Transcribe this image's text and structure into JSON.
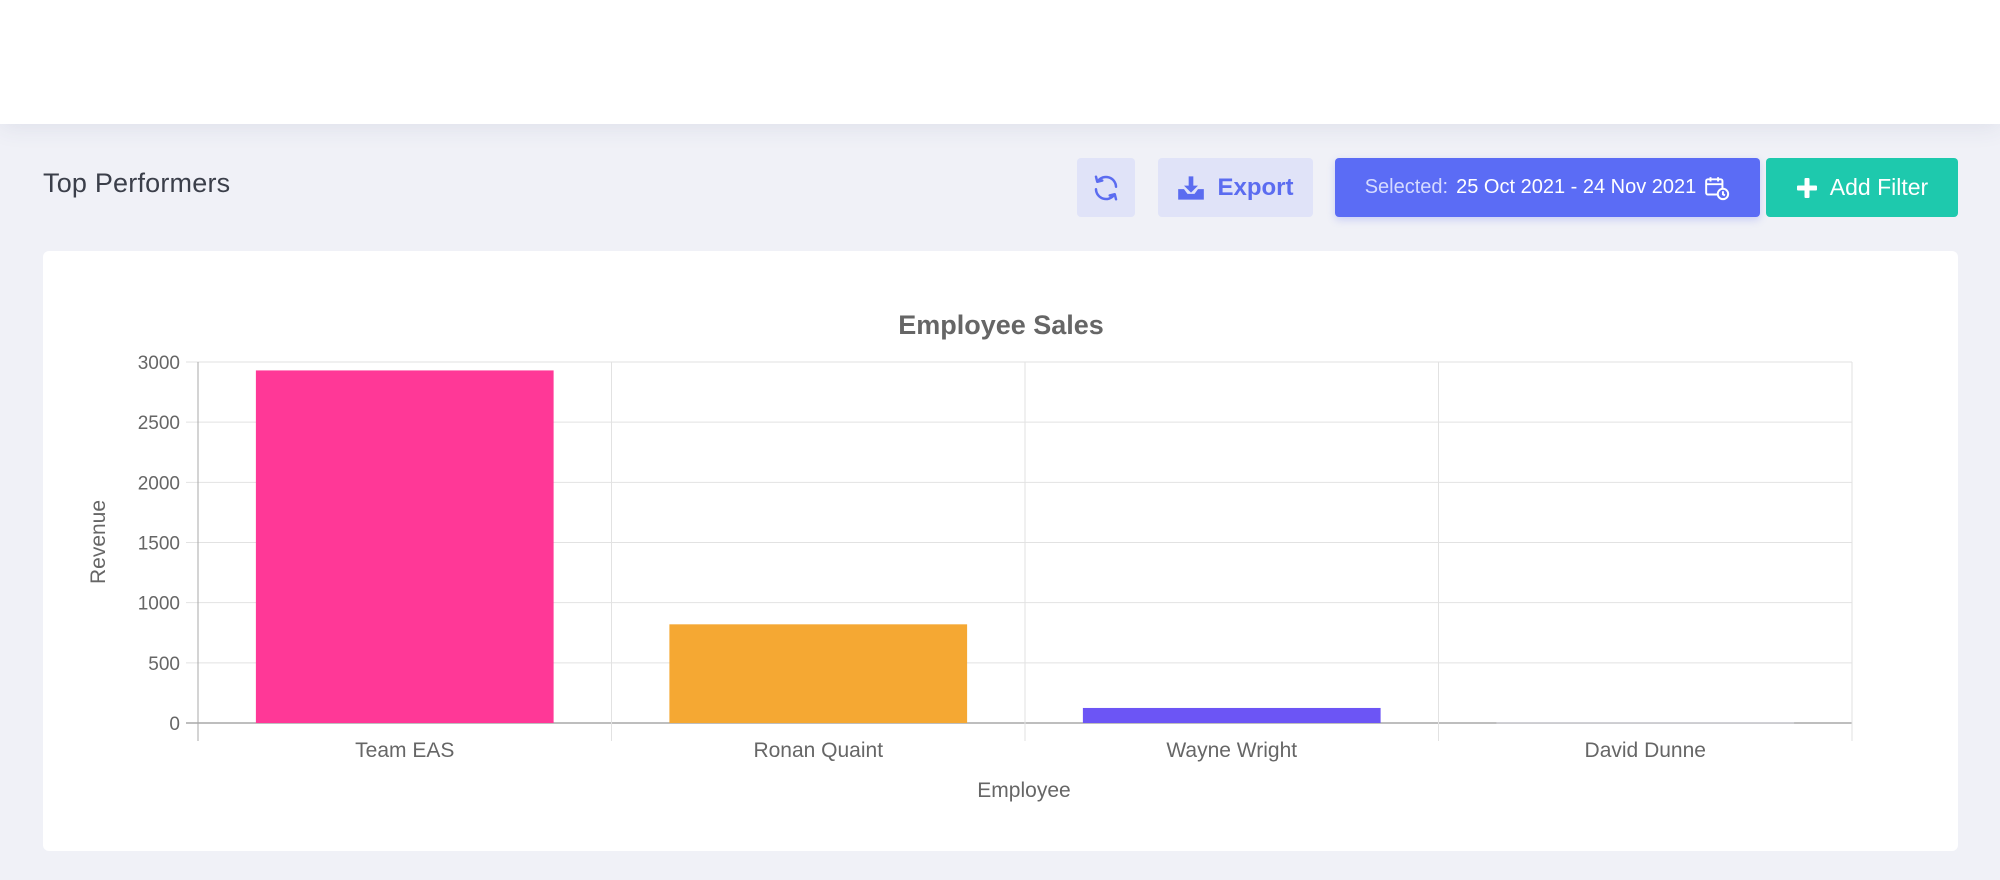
{
  "header": {
    "title": "Top Performers"
  },
  "toolbar": {
    "refresh_icon": "refresh-icon",
    "export_label": "Export",
    "export_icon": "download-icon",
    "date_label": "Selected:",
    "date_value": "25 Oct 2021 - 24 Nov 2021",
    "date_icon": "calendar-clock-icon",
    "filter_label": "Add Filter",
    "filter_icon": "plus-icon"
  },
  "colors": {
    "primary": "#5b6cf5",
    "success": "#1ec9ad"
  },
  "chart_data": {
    "type": "bar",
    "title": "Employee Sales",
    "xlabel": "Employee",
    "ylabel": "Revenue",
    "categories": [
      "Team  EAS",
      "Ronan Quaint",
      "Wayne  Wright",
      "David Dunne"
    ],
    "values": [
      2930,
      820,
      125,
      5
    ],
    "colors": [
      "#ff3897",
      "#f5a833",
      "#6c55f5",
      "#cfcfd6"
    ],
    "ylim": [
      0,
      3000
    ],
    "yticks": [
      0,
      500,
      1000,
      1500,
      2000,
      2500,
      3000
    ],
    "grid": true,
    "legend": "none"
  }
}
